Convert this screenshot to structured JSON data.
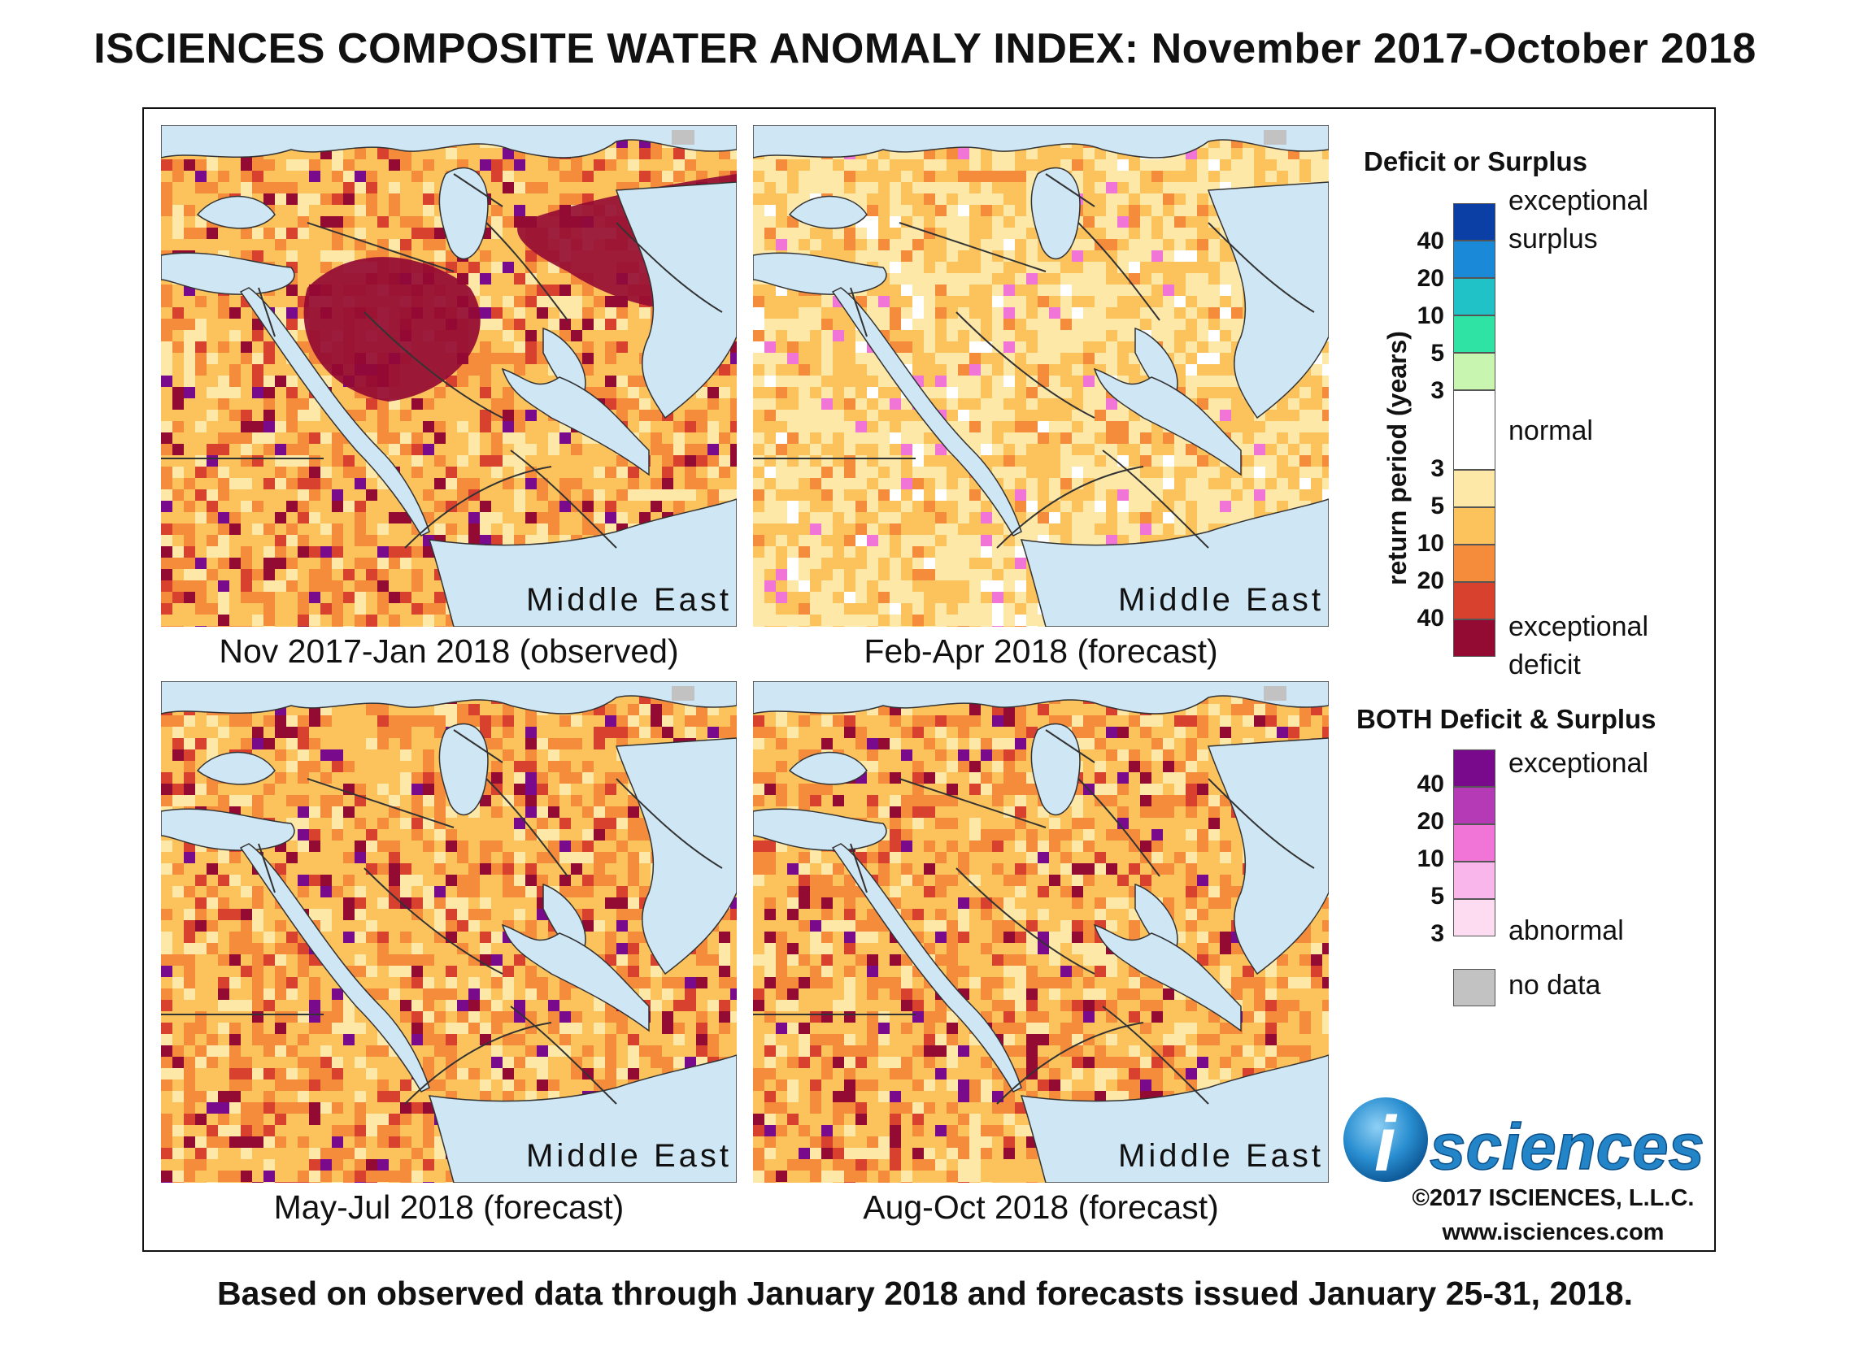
{
  "title": "ISCIENCES COMPOSITE WATER ANOMALY INDEX: November 2017-October 2018",
  "panels": [
    {
      "caption": "Nov 2017-Jan 2018 (observed)",
      "region": "Middle East",
      "dominant": "severe-deficit"
    },
    {
      "caption": "Feb-Apr 2018 (forecast)",
      "region": "Middle East",
      "dominant": "moderate-deficit"
    },
    {
      "caption": "May-Jul 2018 (forecast)",
      "region": "Middle East",
      "dominant": "severe-deficit"
    },
    {
      "caption": "Aug-Oct 2018 (forecast)",
      "region": "Middle East",
      "dominant": "severe-deficit"
    }
  ],
  "legend": {
    "deficit_surplus_title": "Deficit or Surplus",
    "axis_label": "return period (years)",
    "surplus_ticks": [
      "40",
      "20",
      "10",
      "5",
      "3"
    ],
    "deficit_ticks": [
      "3",
      "5",
      "10",
      "20",
      "40"
    ],
    "label_exceptional_surplus_1": "exceptional",
    "label_exceptional_surplus_2": "surplus",
    "label_normal": "normal",
    "label_exceptional_deficit_1": "exceptional",
    "label_exceptional_deficit_2": "deficit",
    "both_title": "BOTH Deficit & Surplus",
    "both_ticks": [
      "40",
      "20",
      "10",
      "5",
      "3"
    ],
    "label_both_exceptional": "exceptional",
    "label_both_abnormal": "abnormal",
    "label_no_data": "no data",
    "colors": {
      "surplus": [
        "#0b3fa5",
        "#1a8ad8",
        "#20c2c8",
        "#2fe3a5",
        "#c8f5b0"
      ],
      "normal": "#ffffff",
      "deficit": [
        "#fde8a8",
        "#fcc25c",
        "#f48c3c",
        "#d7412e",
        "#930a33"
      ],
      "both": [
        "#7a0a8c",
        "#b53ab5",
        "#f075d6",
        "#f9b6ea",
        "#fddcf2"
      ],
      "no_data": "#c2c2c2",
      "water": "#cfe6f4"
    }
  },
  "logo": {
    "text": "sciences",
    "letter": "i"
  },
  "copyright": "©2017 ISCIENCES, L.L.C.",
  "website": "www.isciences.com",
  "footer": "Based on observed data through January 2018 and forecasts issued January 25-31, 2018."
}
